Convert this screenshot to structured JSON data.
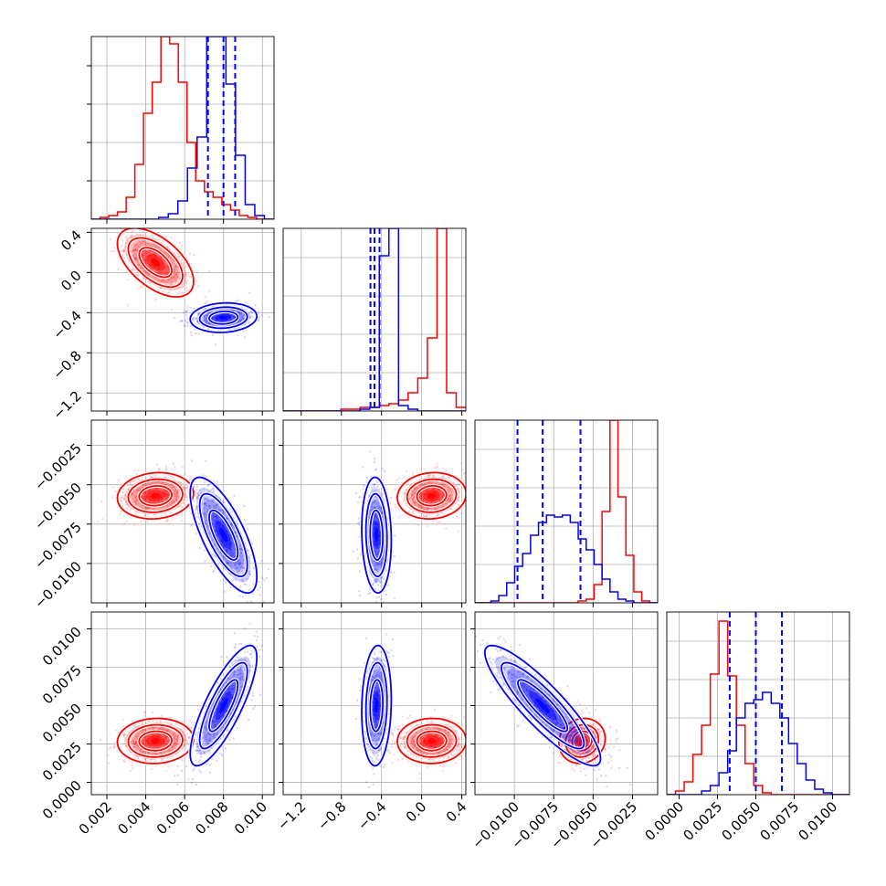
{
  "chart_data": {
    "type": "corner",
    "title": "",
    "grid": true,
    "legend": "none",
    "colors": {
      "series_a": "#ff0000",
      "series_b": "#0000ff"
    },
    "parameters": [
      {
        "range": [
          0.0012,
          0.0106
        ],
        "ticks": [
          0.002,
          0.004,
          0.006,
          0.008,
          0.01
        ],
        "tick_labels": [
          "0.002",
          "0.004",
          "0.006",
          "0.008",
          "0.010"
        ]
      },
      {
        "range": [
          -1.38,
          0.44
        ],
        "ticks": [
          -1.2,
          -0.8,
          -0.4,
          0.0,
          0.4
        ],
        "tick_labels": [
          "−1.2",
          "−0.8",
          "−0.4",
          "0.0",
          "0.4"
        ]
      },
      {
        "range": [
          -0.0125,
          -0.0009
        ],
        "ticks": [
          -0.01,
          -0.0075,
          -0.005,
          -0.0025
        ],
        "tick_labels": [
          "−0.0100",
          "−0.0075",
          "−0.0050",
          "−0.0025"
        ]
      },
      {
        "range": [
          -0.0008,
          0.0111
        ],
        "ticks": [
          0.0,
          0.0025,
          0.005,
          0.0075,
          0.01
        ],
        "tick_labels": [
          "0.0000",
          "0.0025",
          "0.0050",
          "0.0075",
          "0.0100"
        ]
      }
    ],
    "series": [
      {
        "color": "#ff0000",
        "mean": [
          0.0045,
          0.1,
          -0.0057,
          0.0027
        ],
        "sd": [
          0.0008,
          0.14,
          0.0006,
          0.0006
        ],
        "corr": [
          [
            0,
            1,
            -0.55
          ],
          [
            0,
            2,
            0.1
          ],
          [
            0,
            3,
            0.05
          ],
          [
            1,
            2,
            0.08
          ],
          [
            1,
            3,
            0.02
          ],
          [
            2,
            3,
            0.1
          ]
        ],
        "quantiles": [],
        "histograms": [
          {
            "edges": [
              0.0012,
              0.0106
            ],
            "counts": [
              0,
              1,
              2,
              4,
              12,
              30,
              58,
              75,
              100,
              96,
              75,
              42,
              21,
              15,
              12,
              8,
              5,
              2,
              1,
              0,
              0
            ]
          },
          {
            "edges": [
              -1.38,
              0.44
            ],
            "counts": [
              0,
              0,
              0,
              0,
              0,
              0,
              1,
              1,
              2,
              2,
              3,
              4,
              6,
              10,
              18,
              40,
              100,
              10,
              2
            ]
          },
          {
            "edges": [
              -0.0125,
              -0.0009
            ],
            "counts": [
              0,
              0,
              0,
              0,
              0,
              0,
              0,
              0,
              0,
              0,
              0,
              0,
              0,
              1,
              2,
              10,
              50,
              100,
              58,
              26,
              6,
              1,
              0
            ]
          },
          {
            "edges": [
              -0.0008,
              0.0111
            ],
            "counts": [
              0,
              2,
              7,
              22,
              38,
              66,
              95,
              65,
              38,
              17,
              5,
              1,
              0,
              0,
              0,
              0,
              0,
              0,
              0,
              0,
              0
            ]
          }
        ]
      },
      {
        "color": "#0000ff",
        "mean": [
          0.008,
          -0.45,
          -0.0082,
          0.005
        ],
        "sd": [
          0.0007,
          0.06,
          0.0015,
          0.0016
        ],
        "corr": [
          [
            0,
            1,
            0.1
          ],
          [
            0,
            2,
            -0.72
          ],
          [
            0,
            3,
            0.8
          ],
          [
            1,
            2,
            -0.1
          ],
          [
            1,
            3,
            0.1
          ],
          [
            2,
            3,
            -0.88
          ]
        ],
        "quantiles": [
          [
            0.0072,
            0.008,
            0.0086
          ],
          [
            -0.51,
            -0.47,
            -0.42
          ],
          [
            -0.0098,
            -0.0082,
            -0.0058
          ],
          [
            0.0033,
            0.005,
            0.0067
          ]
        ],
        "histograms": [
          {
            "edges": [
              0.0012,
              0.0106
            ],
            "counts": [
              0,
              0,
              0,
              0,
              0,
              0,
              0,
              1,
              3,
              10,
              28,
              45,
              100,
              100,
              74,
              35,
              8,
              2,
              0
            ]
          },
          {
            "edges": [
              -1.38,
              0.44
            ],
            "counts": [
              0,
              0,
              0,
              0,
              0,
              0,
              0,
              0,
              1,
              2,
              85,
              100,
              3,
              1,
              0,
              0,
              0,
              0,
              0
            ]
          },
          {
            "edges": [
              -0.0125,
              -0.0009
            ],
            "counts": [
              0,
              0,
              1,
              4,
              11,
              20,
              27,
              37,
              44,
              48,
              47,
              48,
              44,
              35,
              29,
              21,
              13,
              6,
              2,
              1,
              0,
              0,
              0
            ]
          },
          {
            "edges": [
              -0.0008,
              0.0111
            ],
            "counts": [
              0,
              0,
              0,
              0,
              2,
              5,
              12,
              24,
              42,
              50,
              52,
              56,
              50,
              42,
              28,
              17,
              8,
              3,
              1,
              0,
              0
            ]
          }
        ]
      }
    ]
  }
}
